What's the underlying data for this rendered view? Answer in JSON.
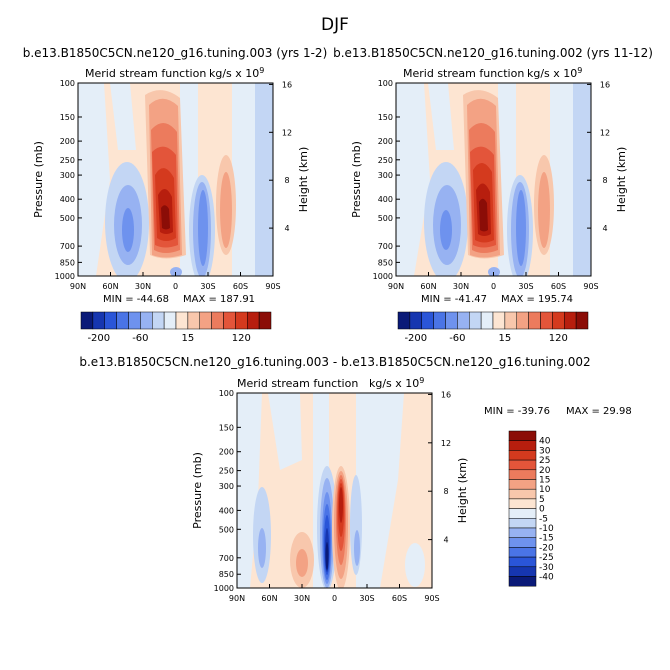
{
  "figure_title": "DJF",
  "panel_subtitle": "Merid stream function",
  "panel_units": "kg/s x 10",
  "panel_units_exp": "9",
  "chart_data": [
    {
      "type": "heatmap",
      "title": "b.e13.B1850C5CN.ne120_g16.tuning.003 (yrs 1-2)",
      "subtitle": "Merid stream function",
      "xlabel": "",
      "ylabel": "Pressure (mb)",
      "ylabel_right": "Height (km)",
      "x_ticks": [
        "90N",
        "60N",
        "30N",
        "0",
        "30S",
        "60S",
        "90S"
      ],
      "y_ticks": [
        "100",
        "150",
        "200",
        "250",
        "300",
        "400",
        "500",
        "700",
        "850",
        "1000"
      ],
      "y_ticks_right": [
        "16",
        "12",
        "8",
        "4"
      ],
      "min_label": "MIN = -44.68",
      "max_label": "MAX = 187.91",
      "min": -44.68,
      "max": 187.91,
      "colorbar_labels": [
        "-200",
        "-60",
        "15",
        "120"
      ],
      "legend": "bottom"
    },
    {
      "type": "heatmap",
      "title": "b.e13.B1850C5CN.ne120_g16.tuning.002 (yrs 11-12)",
      "subtitle": "Merid stream function",
      "xlabel": "",
      "ylabel": "Pressure (mb)",
      "ylabel_right": "Height (km)",
      "x_ticks": [
        "90N",
        "60N",
        "30N",
        "0",
        "30S",
        "60S",
        "90S"
      ],
      "y_ticks": [
        "100",
        "150",
        "200",
        "250",
        "300",
        "400",
        "500",
        "700",
        "850",
        "1000"
      ],
      "y_ticks_right": [
        "16",
        "12",
        "8",
        "4"
      ],
      "min_label": "MIN = -41.47",
      "max_label": "MAX = 195.74",
      "min": -41.47,
      "max": 195.74,
      "colorbar_labels": [
        "-200",
        "-60",
        "15",
        "120"
      ],
      "legend": "bottom"
    },
    {
      "type": "heatmap",
      "title": "b.e13.B1850C5CN.ne120_g16.tuning.003 - b.e13.B1850C5CN.ne120_g16.tuning.002",
      "subtitle": "Merid stream function",
      "xlabel": "",
      "ylabel": "Pressure (mb)",
      "ylabel_right": "Height (km)",
      "x_ticks": [
        "90N",
        "60N",
        "30N",
        "0",
        "30S",
        "60S",
        "90S"
      ],
      "y_ticks": [
        "100",
        "150",
        "200",
        "250",
        "300",
        "400",
        "500",
        "700",
        "850",
        "1000"
      ],
      "y_ticks_right": [
        "16",
        "12",
        "8",
        "4"
      ],
      "min_label": "MIN = -39.76",
      "max_label": "MAX =  29.98",
      "min": -39.76,
      "max": 29.98,
      "colorbar_labels": [
        "40",
        "30",
        "25",
        "20",
        "15",
        "10",
        "5",
        "0",
        "-5",
        "-10",
        "-15",
        "-20",
        "-25",
        "-30",
        "-40"
      ],
      "legend": "right"
    }
  ],
  "colors": {
    "main_scale": [
      "#0a1a78",
      "#1636b0",
      "#2a55d8",
      "#4a74e6",
      "#6e92ee",
      "#97b2f2",
      "#c3d6f4",
      "#e4eef8",
      "#fde5d2",
      "#f8c7ac",
      "#f3a284",
      "#ec7b5d",
      "#e3553a",
      "#d43a1e",
      "#b71e0e",
      "#8b0d07"
    ],
    "diff_scale": [
      "#8b0d07",
      "#b71e0e",
      "#d43a1e",
      "#e3553a",
      "#ec7b5d",
      "#f3a284",
      "#f8c7ac",
      "#fde5d2",
      "#e4eef8",
      "#c3d6f4",
      "#97b2f2",
      "#6e92ee",
      "#4a74e6",
      "#2a55d8",
      "#1636b0",
      "#0a1a78"
    ]
  }
}
